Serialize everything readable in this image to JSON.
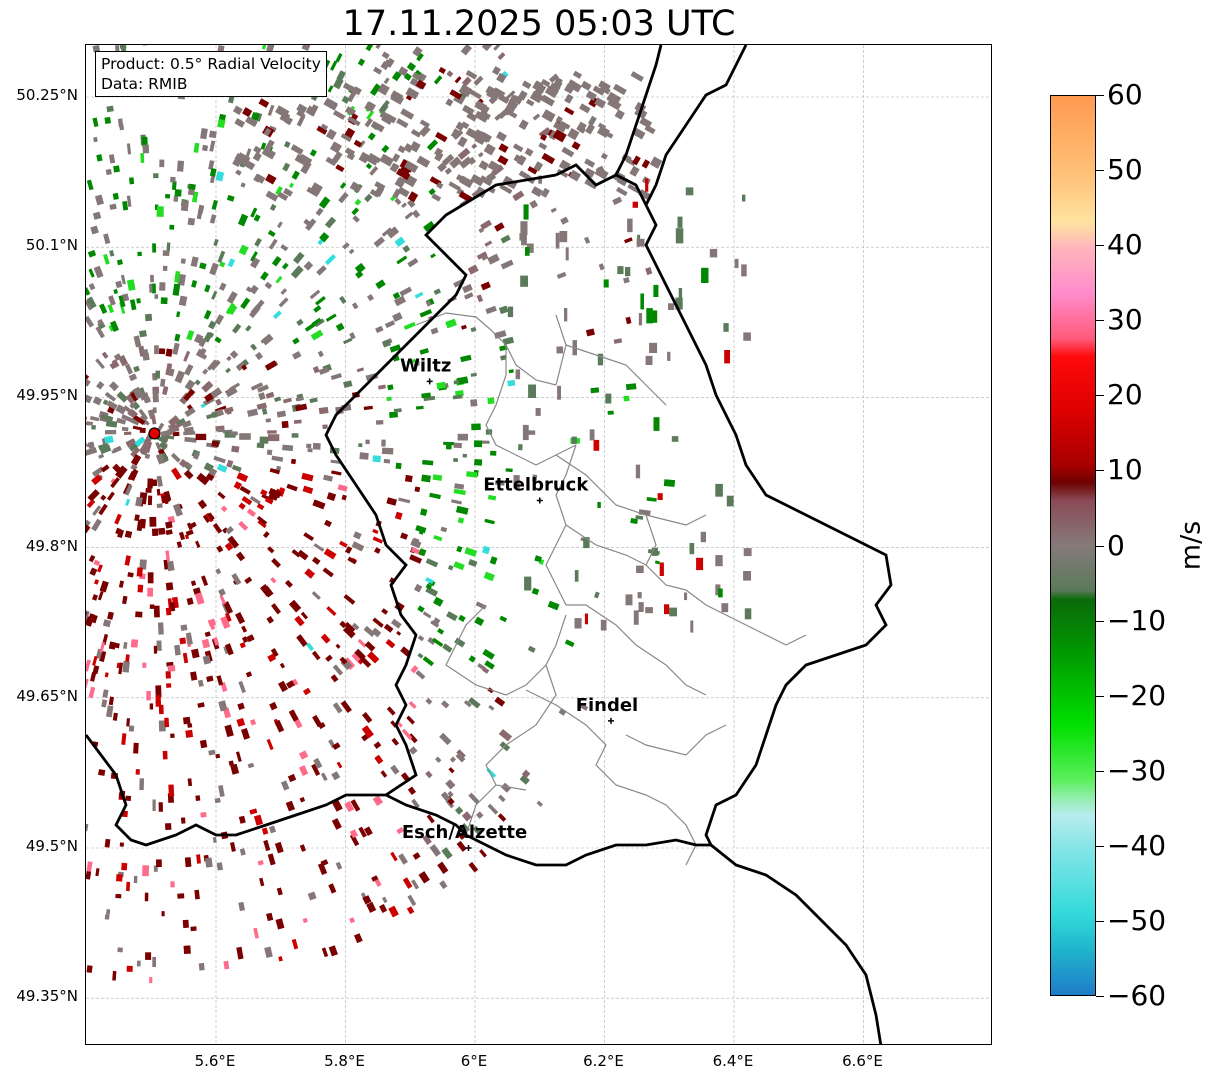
{
  "title": "17.11.2025 05:03 UTC",
  "info": {
    "product": "Product: 0.5° Radial Velocity",
    "source": "Data: RMIB"
  },
  "lat_labels": [
    "50.25°N",
    "50.1°N",
    "49.95°N",
    "49.8°N",
    "49.65°N",
    "49.5°N",
    "49.35°N"
  ],
  "lon_labels": [
    "5.6°E",
    "5.8°E",
    "6°E",
    "6.2°E",
    "6.4°E",
    "6.6°E"
  ],
  "colorbar": {
    "unit": "m/s",
    "ticks": [
      "60",
      "50",
      "40",
      "30",
      "20",
      "10",
      "0",
      "−10",
      "−20",
      "−30",
      "−40",
      "−50",
      "−60"
    ],
    "min": -60,
    "max": 60
  },
  "cities": [
    {
      "name": "Wiltz",
      "lon": 5.93,
      "lat": 49.966
    },
    {
      "name": "Ettelbruck",
      "lon": 6.1,
      "lat": 49.847
    },
    {
      "name": "Findel",
      "lon": 6.21,
      "lat": 49.627
    },
    {
      "name": "Esch/Alzette",
      "lon": 5.99,
      "lat": 49.5
    }
  ],
  "radar_site": {
    "lon": 5.505,
    "lat": 49.914
  },
  "colors": {
    "receding_dark": "#7a0000",
    "receding": "#cc0000",
    "receding_pink": "#ff6b8a",
    "near_zero_red": "#8a6a6e",
    "near_zero": "#857777",
    "near_zero_green": "#5a7a5a",
    "approaching": "#008800",
    "approaching_bright": "#22dd22",
    "approaching_cyan": "#33dddd",
    "radar_marker": "#e00000",
    "country_border": "#000000",
    "district_border": "#888888",
    "grid": "#b0b0b0"
  }
}
